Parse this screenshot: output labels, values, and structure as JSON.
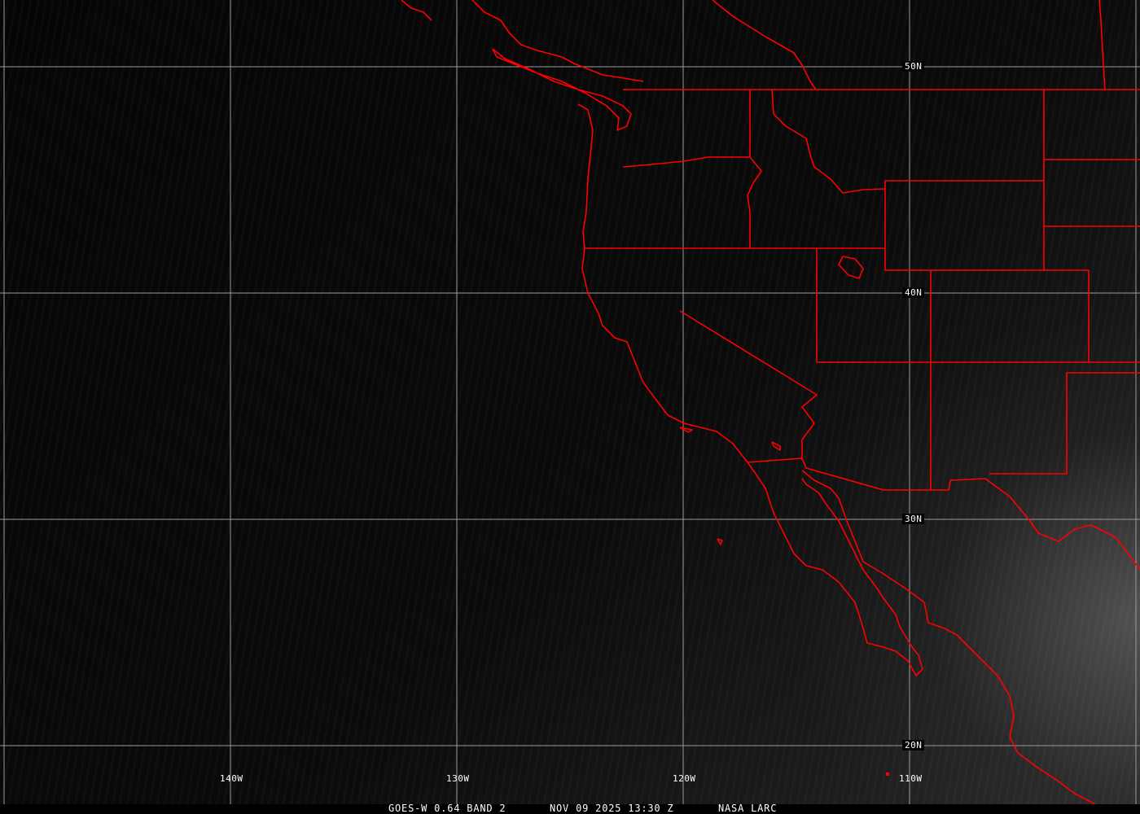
{
  "caption": {
    "product": "GOES-W 0.64 BAND 2",
    "datetime": "NOV 09 2025 13:30 Z",
    "source": "NASA LARC"
  },
  "grid": {
    "longitude_labels": [
      "140W",
      "130W",
      "120W",
      "110W"
    ],
    "latitude_labels": [
      "50N",
      "40N",
      "30N",
      "20N"
    ],
    "line_color": "#a0a0a0"
  },
  "boundaries": {
    "color": "#ff0000",
    "layers": [
      "coastlines",
      "national borders",
      "state borders"
    ]
  }
}
